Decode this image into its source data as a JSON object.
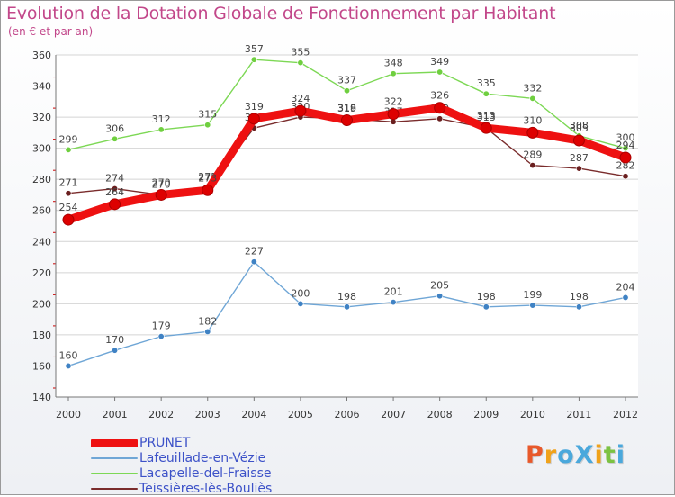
{
  "header": {
    "title": "Evolution de la Dotation Globale de Fonctionnement par Habitant",
    "subtitle": "(en € et par an)"
  },
  "logo": {
    "text": "ProXiti",
    "letters": [
      "P",
      "r",
      "o",
      "X",
      "i",
      "t",
      "i"
    ],
    "colors": [
      "#e8592b",
      "#f0a21a",
      "#4aa8dc",
      "#4aa8dc",
      "#f0a21a",
      "#7cc242",
      "#4aa8dc"
    ]
  },
  "chart_data": {
    "type": "line",
    "title": "Evolution de la Dotation Globale de Fonctionnement par Habitant",
    "subtitle": "(en € et par an)",
    "xlabel": "",
    "ylabel": "",
    "x": [
      "2000",
      "2001",
      "2002",
      "2003",
      "2004",
      "2005",
      "2006",
      "2007",
      "2008",
      "2009",
      "2010",
      "2011",
      "2012"
    ],
    "ylim": [
      140,
      360
    ],
    "yticks": [
      "140",
      "160",
      "180",
      "200",
      "220",
      "240",
      "260",
      "280",
      "300",
      "320",
      "340",
      "360"
    ],
    "grid": "horizontal",
    "legend_position": "bottom-left",
    "series": [
      {
        "name": "Lacapelle-del-Fraisse",
        "color": "#7dd855",
        "marker_color": "#6fcf3f",
        "values": [
          299,
          306,
          312,
          315,
          357,
          355,
          337,
          348,
          349,
          335,
          332,
          308,
          300
        ]
      },
      {
        "name": "Teissières-lès-Bouliès",
        "color": "#7a2c2c",
        "marker_color": "#6a1f1f",
        "values": [
          271,
          274,
          270,
          275,
          313,
          320,
          319,
          317,
          319,
          313,
          289,
          287,
          282
        ]
      },
      {
        "name": "Lafeuillade-en-Vézie",
        "color": "#6fa6d6",
        "marker_color": "#3f82c4",
        "values": [
          160,
          170,
          179,
          182,
          227,
          200,
          198,
          201,
          205,
          198,
          199,
          198,
          204
        ]
      },
      {
        "name": "PRUNET",
        "color": "#ee1111",
        "marker_color": "#dd0000",
        "values": [
          254,
          264,
          270,
          273,
          319,
          324,
          318,
          322,
          326,
          313,
          310,
          305,
          294
        ]
      }
    ],
    "legend": [
      "PRUNET",
      "Lafeuillade-en-Vézie",
      "Lacapelle-del-Fraisse",
      "Teissières-lès-Bouliès"
    ]
  }
}
